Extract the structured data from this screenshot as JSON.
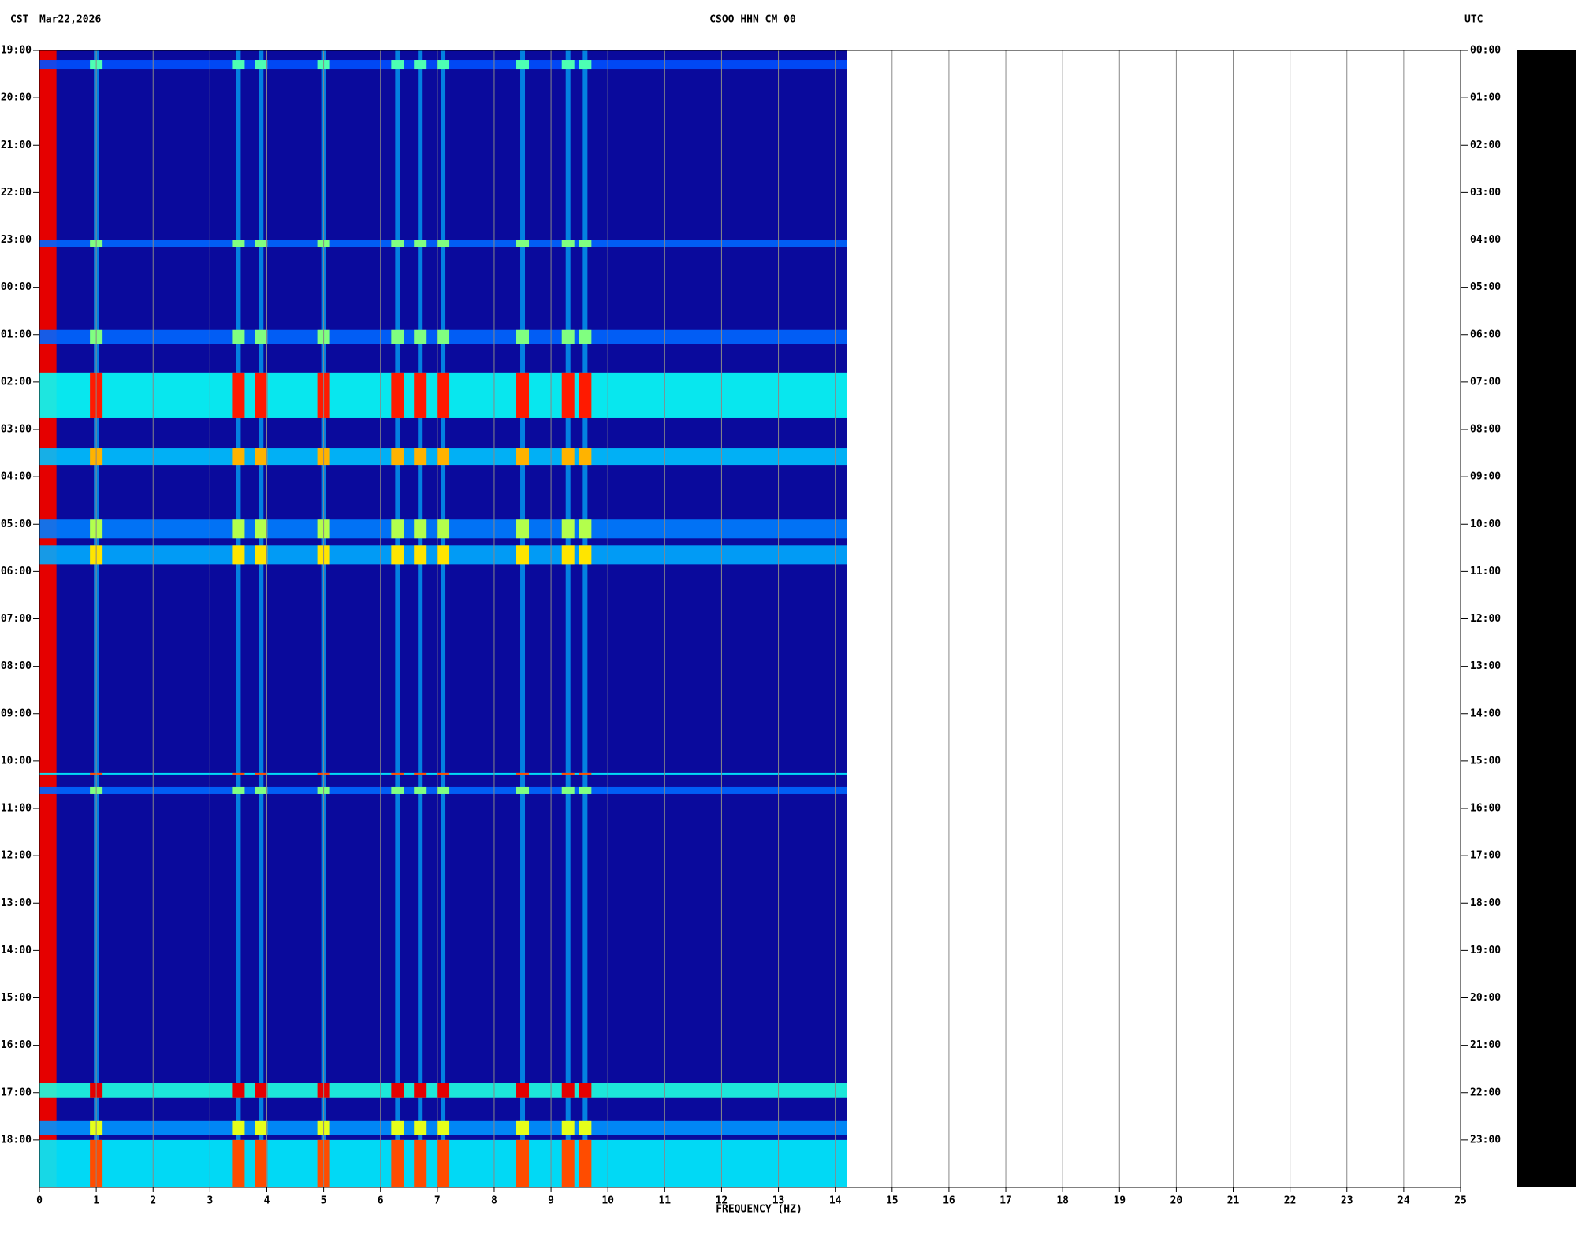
{
  "chart_data": {
    "type": "spectrogram",
    "timezone_left": "CST",
    "date": "Mar22,2026",
    "title": "CSOO HHN CM 00",
    "timezone_right": "UTC",
    "xlabel": "FREQUENCY (HZ)",
    "xlim": [
      0,
      25
    ],
    "xticks": [
      0,
      1,
      2,
      3,
      4,
      5,
      6,
      7,
      8,
      9,
      10,
      11,
      12,
      13,
      14,
      15,
      16,
      17,
      18,
      19,
      20,
      21,
      22,
      23,
      24,
      25
    ],
    "ylim": [
      0,
      24
    ],
    "yticks": [
      {
        "value": 0,
        "label": "19:00"
      },
      {
        "value": 1,
        "label": "20:00"
      },
      {
        "value": 2,
        "label": "21:00"
      },
      {
        "value": 3,
        "label": "22:00"
      },
      {
        "value": 4,
        "label": "23:00"
      },
      {
        "value": 5,
        "label": "00:00"
      },
      {
        "value": 6,
        "label": "01:00"
      },
      {
        "value": 7,
        "label": "02:00"
      },
      {
        "value": 8,
        "label": "03:00"
      },
      {
        "value": 9,
        "label": "04:00"
      },
      {
        "value": 10,
        "label": "05:00"
      },
      {
        "value": 11,
        "label": "06:00"
      },
      {
        "value": 12,
        "label": "07:00"
      },
      {
        "value": 13,
        "label": "08:00"
      },
      {
        "value": 14,
        "label": "09:00"
      },
      {
        "value": 15,
        "label": "10:00"
      },
      {
        "value": 16,
        "label": "11:00"
      },
      {
        "value": 17,
        "label": "12:00"
      },
      {
        "value": 18,
        "label": "13:00"
      },
      {
        "value": 19,
        "label": "14:00"
      },
      {
        "value": 20,
        "label": "15:00"
      },
      {
        "value": 21,
        "label": "16:00"
      },
      {
        "value": 22,
        "label": "17:00"
      },
      {
        "value": 23,
        "label": "18:00"
      }
    ],
    "y2lim": [
      0,
      24
    ],
    "y2ticks": [
      {
        "value": 0,
        "label": "00:00"
      },
      {
        "value": 1,
        "label": "01:00"
      },
      {
        "value": 2,
        "label": "02:00"
      },
      {
        "value": 3,
        "label": "03:00"
      },
      {
        "value": 4,
        "label": "04:00"
      },
      {
        "value": 5,
        "label": "05:00"
      },
      {
        "value": 6,
        "label": "06:00"
      },
      {
        "value": 7,
        "label": "07:00"
      },
      {
        "value": 8,
        "label": "08:00"
      },
      {
        "value": 9,
        "label": "09:00"
      },
      {
        "value": 10,
        "label": "10:00"
      },
      {
        "value": 11,
        "label": "11:00"
      },
      {
        "value": 12,
        "label": "12:00"
      },
      {
        "value": 13,
        "label": "13:00"
      },
      {
        "value": 14,
        "label": "14:00"
      },
      {
        "value": 15,
        "label": "15:00"
      },
      {
        "value": 16,
        "label": "16:00"
      },
      {
        "value": 17,
        "label": "17:00"
      },
      {
        "value": 18,
        "label": "18:00"
      },
      {
        "value": 19,
        "label": "19:00"
      },
      {
        "value": 20,
        "label": "20:00"
      },
      {
        "value": 21,
        "label": "21:00"
      },
      {
        "value": 22,
        "label": "22:00"
      },
      {
        "value": 23,
        "label": "23:00"
      }
    ],
    "grid": true,
    "fmax": 14.2,
    "low_band": [
      0,
      0.3
    ],
    "lines_hz": [
      1,
      3.5,
      3.9,
      5,
      6.3,
      6.7,
      7.1,
      8.5,
      9.3,
      9.6
    ],
    "events": [
      {
        "start": 0.2,
        "end": 0.4,
        "intensity": 0.45
      },
      {
        "start": 4.0,
        "end": 4.15,
        "intensity": 0.5
      },
      {
        "start": 5.9,
        "end": 6.2,
        "intensity": 0.5
      },
      {
        "start": 6.8,
        "end": 7.75,
        "intensity": 0.85
      },
      {
        "start": 8.4,
        "end": 8.75,
        "intensity": 0.7
      },
      {
        "start": 9.9,
        "end": 10.3,
        "intensity": 0.55
      },
      {
        "start": 10.45,
        "end": 10.85,
        "intensity": 0.65
      },
      {
        "start": 15.25,
        "end": 15.3,
        "intensity": 0.8
      },
      {
        "start": 15.55,
        "end": 15.7,
        "intensity": 0.5
      },
      {
        "start": 21.8,
        "end": 22.1,
        "intensity": 0.9
      },
      {
        "start": 22.6,
        "end": 22.9,
        "intensity": 0.6
      },
      {
        "start": 23.0,
        "end": 24.0,
        "intensity": 0.8
      }
    ]
  }
}
